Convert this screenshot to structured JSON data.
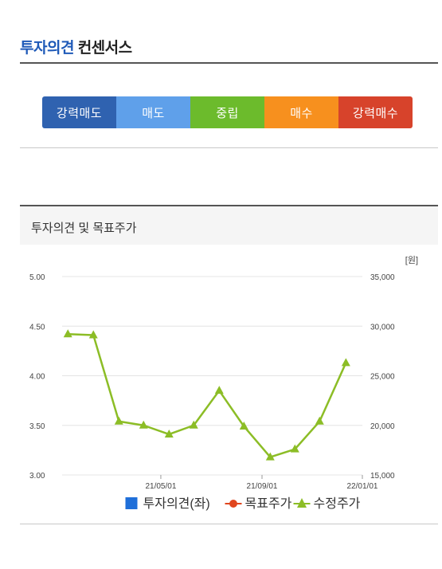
{
  "header": {
    "title_accent": "투자의견",
    "title_rest": "컨센서스"
  },
  "consensus": {
    "segments": [
      {
        "label": "강력매도",
        "color": "#2f62b0"
      },
      {
        "label": "매도",
        "color": "#5fa0ea"
      },
      {
        "label": "중립",
        "color": "#6cbb2c"
      },
      {
        "label": "매수",
        "color": "#f7901e"
      },
      {
        "label": "강력매수",
        "color": "#d7432b"
      }
    ]
  },
  "chart_panel": {
    "title": "투자의견 및 목표주가"
  },
  "chart_data": {
    "type": "line",
    "left_axis": {
      "ticks": [
        "5.00",
        "4.50",
        "4.00",
        "3.50",
        "3.00"
      ],
      "range": [
        3.0,
        5.0
      ]
    },
    "right_axis": {
      "unit": "[원]",
      "ticks": [
        "35,000",
        "30,000",
        "25,000",
        "20,000",
        "15,000"
      ],
      "range": [
        15000,
        35000
      ]
    },
    "x_ticks": [
      "21/05/01",
      "21/09/01",
      "22/01/01"
    ],
    "x_ticks_date": [
      "2021-05-01",
      "2021-09-01",
      "2022-01-01"
    ],
    "x_range": [
      "2021-01-01",
      "2022-01-01"
    ],
    "grid": true,
    "legend": {
      "position": "bottom",
      "items": [
        {
          "label": "투자의견(좌)",
          "color": "#1f6fd9",
          "marker": "square"
        },
        {
          "label": "목표주가",
          "color": "#e0461e",
          "marker": "dot"
        },
        {
          "label": "수정주가",
          "color": "#8cbd26",
          "marker": "triangle"
        }
      ]
    },
    "series": [
      {
        "name": "수정주가",
        "axis": "right",
        "color": "#8cbd26",
        "x": [
          "2021-01-08",
          "2021-02-08",
          "2021-03-11",
          "2021-04-10",
          "2021-05-11",
          "2021-06-10",
          "2021-07-11",
          "2021-08-10",
          "2021-09-11",
          "2021-10-11",
          "2021-11-10",
          "2021-12-12"
        ],
        "values": [
          29200,
          29100,
          20400,
          20000,
          19100,
          20000,
          23500,
          19900,
          16800,
          17600,
          20400,
          26300
        ]
      }
    ]
  }
}
